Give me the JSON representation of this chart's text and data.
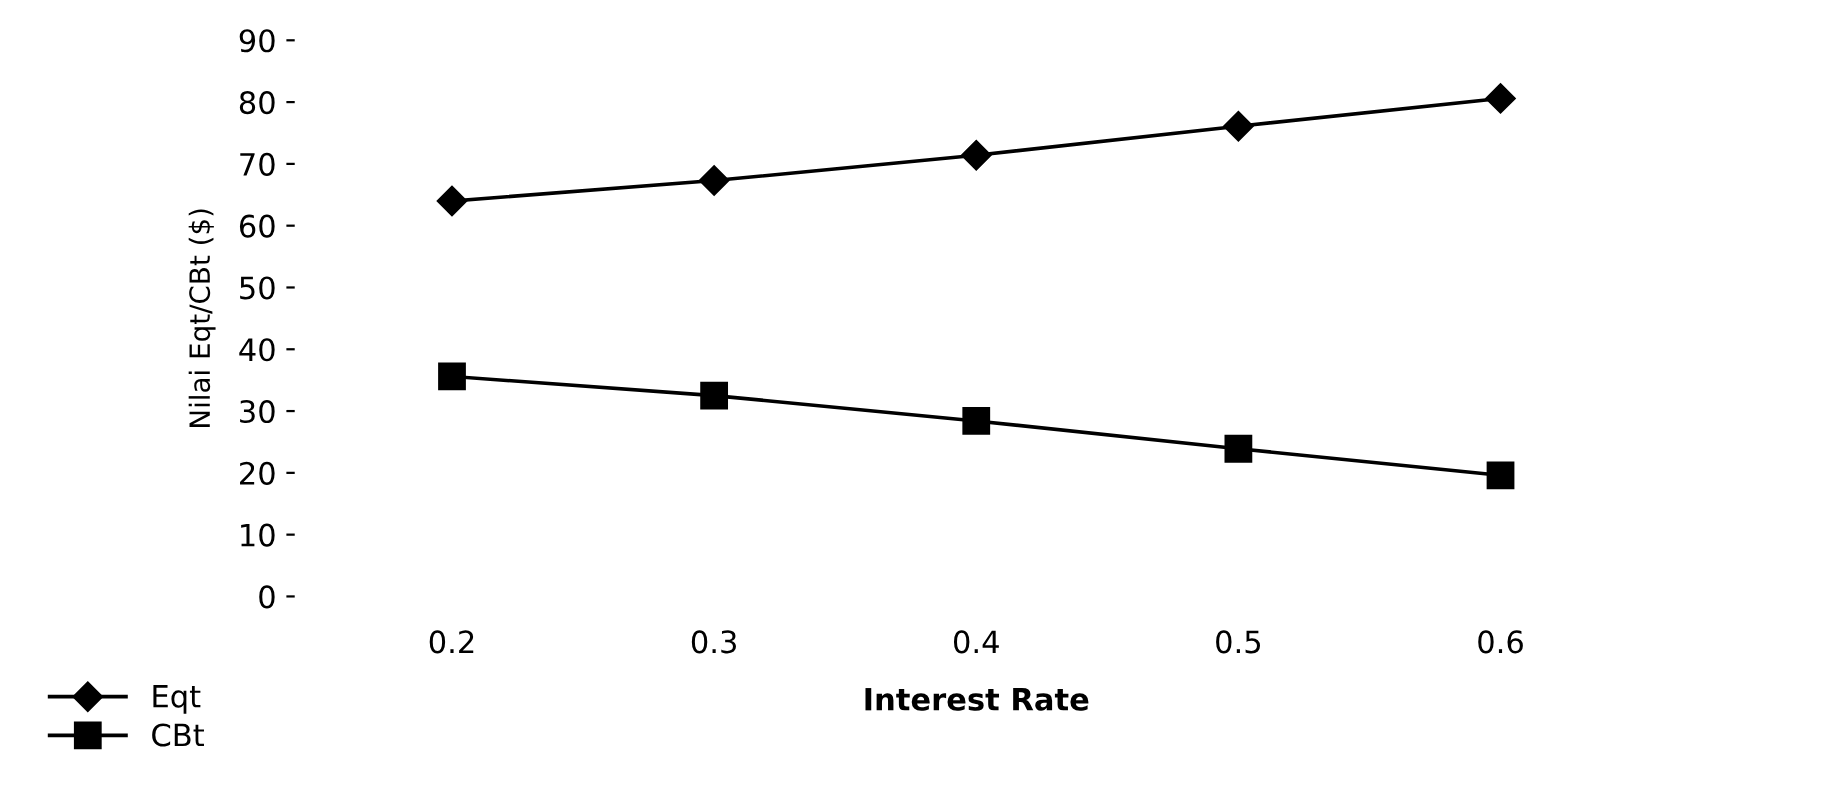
{
  "chart_data": {
    "type": "line",
    "xlabel": "Interest Rate",
    "ylabel": "Nilai Eqt/CBt ($)",
    "categories": [
      "0.2",
      "0.3",
      "0.4",
      "0.5",
      "0.6"
    ],
    "series": [
      {
        "name": "Eqt",
        "color": "#000000",
        "marker": "diamond",
        "values": [
          64,
          67.3,
          71.4,
          76.1,
          80.6
        ]
      },
      {
        "name": "CBt",
        "color": "#000000",
        "marker": "square",
        "values": [
          35.6,
          32.5,
          28.4,
          23.9,
          19.6
        ]
      }
    ],
    "ylim": [
      0,
      90
    ],
    "yticks": [
      0,
      10,
      20,
      30,
      40,
      50,
      60,
      70,
      80,
      90
    ],
    "grid": false,
    "legend": "bottom left",
    "line_style": "solid"
  }
}
